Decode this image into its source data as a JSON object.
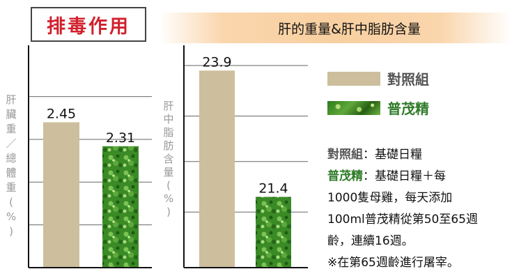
{
  "badge": "排毒作用",
  "banner": "肝的重量&肝中脂肪含量",
  "legend": [
    {
      "label": "對照組",
      "color": "#cdbf9d"
    },
    {
      "label": "普茂精",
      "color": "#3f8f2a"
    }
  ],
  "notes": {
    "control_key": "對照組",
    "control_text": "：基礎日糧",
    "treat_key": "普茂精",
    "treat_text_1": "：基礎日糧＋每",
    "treat_text_2": "1000隻母雞，每天添加",
    "treat_text_3": "100ml普茂精從第50至65週",
    "treat_text_4": "齡，連續16週。",
    "footnote": "※在第65週齡進行屠宰。"
  },
  "chart_data": [
    {
      "type": "bar",
      "ylabel": "肝臟重／總體重(%)",
      "categories": [
        "對照組",
        "普茂精"
      ],
      "values": [
        2.45,
        2.31
      ],
      "value_labels": [
        "2.45",
        "2.31"
      ],
      "ylim": [
        1.6,
        2.9
      ],
      "gridlines": [
        1.85,
        2.1,
        2.35,
        2.6
      ],
      "colors": [
        "#cdbf9d",
        "#3f8f2a"
      ]
    },
    {
      "type": "bar",
      "ylabel": "肝中脂肪含量(%)",
      "categories": [
        "對照組",
        "普茂精"
      ],
      "values": [
        23.9,
        21.4
      ],
      "value_labels": [
        "23.9",
        "21.4"
      ],
      "ylim": [
        20.0,
        24.4
      ],
      "gridlines": [
        21.1,
        22.1,
        23.0,
        24.0
      ],
      "colors": [
        "#cdbf9d",
        "#3f8f2a"
      ]
    }
  ]
}
